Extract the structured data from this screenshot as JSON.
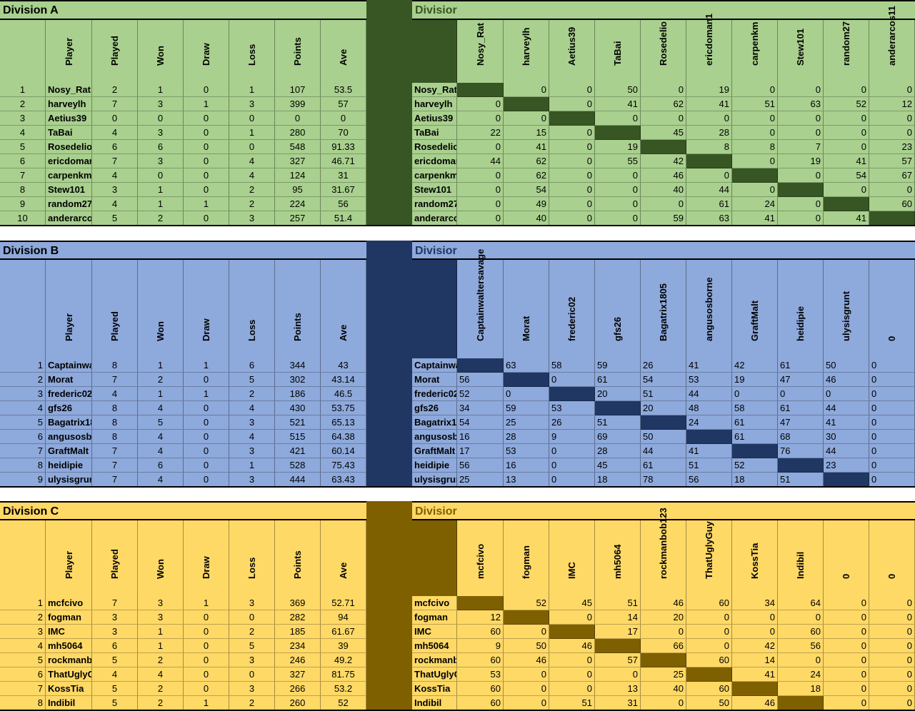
{
  "divisions": [
    {
      "title": "Division A",
      "matrix_title": "Divisior",
      "colors": {
        "bg": "#a9d08e",
        "dark": "#375623",
        "title": "#a9d08e",
        "matrix_title_text": "#375623"
      },
      "columns": [
        "Player",
        "Played",
        "Won",
        "Draw",
        "Loss",
        "Points",
        "Ave"
      ],
      "num_align": "center",
      "matrix_align": "right",
      "matrix_headers": [
        "Nosy_Rat",
        "harveylh",
        "Aetius39",
        "TaBai",
        "Rosedelio",
        "ericdoman1",
        "carpenkm",
        "Stew101",
        "random27",
        "anderarcos11"
      ],
      "rows": [
        {
          "rank": "1",
          "player": "Nosy_Rat",
          "stats": [
            "2",
            "1",
            "0",
            "1",
            "107",
            "53.5"
          ],
          "mname": "Nosy_Rat",
          "scores": [
            "",
            "0",
            "0",
            "50",
            "0",
            "19",
            "0",
            "0",
            "0",
            "0"
          ]
        },
        {
          "rank": "2",
          "player": "harveylh",
          "stats": [
            "7",
            "3",
            "1",
            "3",
            "399",
            "57"
          ],
          "mname": "harveylh",
          "scores": [
            "0",
            "",
            "0",
            "41",
            "62",
            "41",
            "51",
            "63",
            "52",
            "12"
          ]
        },
        {
          "rank": "3",
          "player": "Aetius39",
          "stats": [
            "0",
            "0",
            "0",
            "0",
            "0",
            "0"
          ],
          "mname": "Aetius39",
          "scores": [
            "0",
            "0",
            "",
            "0",
            "0",
            "0",
            "0",
            "0",
            "0",
            "0"
          ]
        },
        {
          "rank": "4",
          "player": "TaBai",
          "stats": [
            "4",
            "3",
            "0",
            "1",
            "280",
            "70"
          ],
          "mname": "TaBai",
          "scores": [
            "22",
            "15",
            "0",
            "",
            "45",
            "28",
            "0",
            "0",
            "0",
            "0"
          ]
        },
        {
          "rank": "5",
          "player": "Rosedelio",
          "stats": [
            "6",
            "6",
            "0",
            "0",
            "548",
            "91.33"
          ],
          "mname": "Rosedelio",
          "scores": [
            "0",
            "41",
            "0",
            "19",
            "",
            "8",
            "8",
            "7",
            "0",
            "23"
          ]
        },
        {
          "rank": "6",
          "player": "ericdoman",
          "stats": [
            "7",
            "3",
            "0",
            "4",
            "327",
            "46.71"
          ],
          "mname": "ericdoman",
          "scores": [
            "44",
            "62",
            "0",
            "55",
            "42",
            "",
            "0",
            "19",
            "41",
            "57"
          ]
        },
        {
          "rank": "7",
          "player": "carpenkm",
          "stats": [
            "4",
            "0",
            "0",
            "4",
            "124",
            "31"
          ],
          "mname": "carpenkm",
          "scores": [
            "0",
            "62",
            "0",
            "0",
            "46",
            "0",
            "",
            "0",
            "54",
            "67"
          ]
        },
        {
          "rank": "8",
          "player": "Stew101",
          "stats": [
            "3",
            "1",
            "0",
            "2",
            "95",
            "31.67"
          ],
          "mname": "Stew101",
          "scores": [
            "0",
            "54",
            "0",
            "0",
            "40",
            "44",
            "0",
            "",
            "0",
            "0"
          ]
        },
        {
          "rank": "9",
          "player": "random27",
          "stats": [
            "4",
            "1",
            "1",
            "2",
            "224",
            "56"
          ],
          "mname": "random27",
          "scores": [
            "0",
            "49",
            "0",
            "0",
            "0",
            "61",
            "24",
            "0",
            "",
            "60"
          ]
        },
        {
          "rank": "10",
          "player": "anderarco",
          "stats": [
            "5",
            "2",
            "0",
            "3",
            "257",
            "51.4"
          ],
          "mname": "anderarco",
          "scores": [
            "0",
            "40",
            "0",
            "0",
            "59",
            "63",
            "41",
            "0",
            "41",
            ""
          ]
        }
      ]
    },
    {
      "title": "Division B",
      "matrix_title": "Divisior",
      "colors": {
        "bg": "#8ea9db",
        "dark": "#203764",
        "title": "#8ea9db",
        "matrix_title_text": "#203764"
      },
      "columns": [
        "Player",
        "Played",
        "Won",
        "Draw",
        "Loss",
        "Points",
        "Ave"
      ],
      "num_align": "right",
      "matrix_align": "left",
      "matrix_headers": [
        "Captainwaltersavage",
        "Morat",
        "frederic02",
        "gfs26",
        "Bagatrix1805",
        "angusosborne",
        "GraftMalt",
        "heidipie",
        "ulysisgrunt",
        "0"
      ],
      "rows": [
        {
          "rank": "1",
          "player": "Captainwa",
          "stats": [
            "8",
            "1",
            "1",
            "6",
            "344",
            "43"
          ],
          "mname": "Captainwaltersavage",
          "scores": [
            "",
            "63",
            "58",
            "59",
            "26",
            "41",
            "42",
            "61",
            "50",
            "0"
          ]
        },
        {
          "rank": "2",
          "player": "Morat",
          "stats": [
            "7",
            "2",
            "0",
            "5",
            "302",
            "43.14"
          ],
          "mname": "Morat",
          "scores": [
            "56",
            "",
            "0",
            "61",
            "54",
            "53",
            "19",
            "47",
            "46",
            "0"
          ]
        },
        {
          "rank": "3",
          "player": "frederic02",
          "stats": [
            "4",
            "1",
            "1",
            "2",
            "186",
            "46.5"
          ],
          "mname": "frederic02",
          "scores": [
            "52",
            "0",
            "",
            "20",
            "51",
            "44",
            "0",
            "0",
            "0",
            "0"
          ]
        },
        {
          "rank": "4",
          "player": "gfs26",
          "stats": [
            "8",
            "4",
            "0",
            "4",
            "430",
            "53.75"
          ],
          "mname": "gfs26",
          "scores": [
            "34",
            "59",
            "53",
            "",
            "20",
            "48",
            "58",
            "61",
            "44",
            "0"
          ]
        },
        {
          "rank": "5",
          "player": "Bagatrix18",
          "stats": [
            "8",
            "5",
            "0",
            "3",
            "521",
            "65.13"
          ],
          "mname": "Bagatrix18",
          "scores": [
            "54",
            "25",
            "26",
            "51",
            "",
            "24",
            "61",
            "47",
            "41",
            "0"
          ]
        },
        {
          "rank": "6",
          "player": "angusosbo",
          "stats": [
            "8",
            "4",
            "0",
            "4",
            "515",
            "64.38"
          ],
          "mname": "angusosbo",
          "scores": [
            "16",
            "28",
            "9",
            "69",
            "50",
            "",
            "61",
            "68",
            "30",
            "0"
          ]
        },
        {
          "rank": "7",
          "player": "GraftMalt",
          "stats": [
            "7",
            "4",
            "0",
            "3",
            "421",
            "60.14"
          ],
          "mname": "GraftMalt",
          "scores": [
            "17",
            "53",
            "0",
            "28",
            "44",
            "41",
            "",
            "76",
            "44",
            "0"
          ]
        },
        {
          "rank": "8",
          "player": "heidipie",
          "stats": [
            "7",
            "6",
            "0",
            "1",
            "528",
            "75.43"
          ],
          "mname": "heidipie",
          "scores": [
            "56",
            "16",
            "0",
            "45",
            "61",
            "51",
            "52",
            "",
            "23",
            "0"
          ]
        },
        {
          "rank": "9",
          "player": "ulysisgrun",
          "stats": [
            "7",
            "4",
            "0",
            "3",
            "444",
            "63.43"
          ],
          "mname": "ulysisgrun",
          "scores": [
            "25",
            "13",
            "0",
            "18",
            "78",
            "56",
            "18",
            "51",
            "",
            "0"
          ]
        }
      ]
    },
    {
      "title": "Division C",
      "matrix_title": "Divisior",
      "colors": {
        "bg": "#ffd966",
        "dark": "#7f6000",
        "title": "#ffd966",
        "matrix_title_text": "#7f6000"
      },
      "columns": [
        "Player",
        "Played",
        "Won",
        "Draw",
        "Loss",
        "Points",
        "Ave"
      ],
      "num_align": "right",
      "matrix_align": "right",
      "matrix_headers": [
        "mcfcivo",
        "fogman",
        "IMC",
        "mh5064",
        "rockmanbob123",
        "ThatUglyGuy",
        "KossTia",
        "Indibil",
        "0",
        "0"
      ],
      "rows": [
        {
          "rank": "1",
          "player": "mcfcivo",
          "stats": [
            "7",
            "3",
            "1",
            "3",
            "369",
            "52.71"
          ],
          "mname": "mcfcivo",
          "scores": [
            "",
            "52",
            "45",
            "51",
            "46",
            "60",
            "34",
            "64",
            "0",
            "0"
          ]
        },
        {
          "rank": "2",
          "player": "fogman",
          "stats": [
            "3",
            "3",
            "0",
            "0",
            "282",
            "94"
          ],
          "mname": "fogman",
          "scores": [
            "12",
            "",
            "0",
            "14",
            "20",
            "0",
            "0",
            "0",
            "0",
            "0"
          ]
        },
        {
          "rank": "3",
          "player": "IMC",
          "stats": [
            "3",
            "1",
            "0",
            "2",
            "185",
            "61.67"
          ],
          "mname": "IMC",
          "scores": [
            "60",
            "0",
            "",
            "17",
            "0",
            "0",
            "0",
            "60",
            "0",
            "0"
          ]
        },
        {
          "rank": "4",
          "player": "mh5064",
          "stats": [
            "6",
            "1",
            "0",
            "5",
            "234",
            "39"
          ],
          "mname": "mh5064",
          "scores": [
            "9",
            "50",
            "46",
            "",
            "66",
            "0",
            "42",
            "56",
            "0",
            "0"
          ]
        },
        {
          "rank": "5",
          "player": "rockmanb",
          "stats": [
            "5",
            "2",
            "0",
            "3",
            "246",
            "49.2"
          ],
          "mname": "rockmanb",
          "scores": [
            "60",
            "46",
            "0",
            "57",
            "",
            "60",
            "14",
            "0",
            "0",
            "0"
          ]
        },
        {
          "rank": "6",
          "player": "ThatUglyGuy",
          "stats": [
            "4",
            "4",
            "0",
            "0",
            "327",
            "81.75"
          ],
          "mname": "ThatUglyG",
          "scores": [
            "53",
            "0",
            "0",
            "0",
            "25",
            "",
            "41",
            "24",
            "0",
            "0"
          ]
        },
        {
          "rank": "7",
          "player": "KossTia",
          "stats": [
            "5",
            "2",
            "0",
            "3",
            "266",
            "53.2"
          ],
          "mname": "KossTia",
          "scores": [
            "60",
            "0",
            "0",
            "13",
            "40",
            "60",
            "",
            "18",
            "0",
            "0"
          ]
        },
        {
          "rank": "8",
          "player": "Indibil",
          "stats": [
            "5",
            "2",
            "1",
            "2",
            "260",
            "52"
          ],
          "mname": "Indibil",
          "scores": [
            "60",
            "0",
            "51",
            "31",
            "0",
            "50",
            "46",
            "",
            "0",
            "0"
          ]
        }
      ]
    }
  ]
}
